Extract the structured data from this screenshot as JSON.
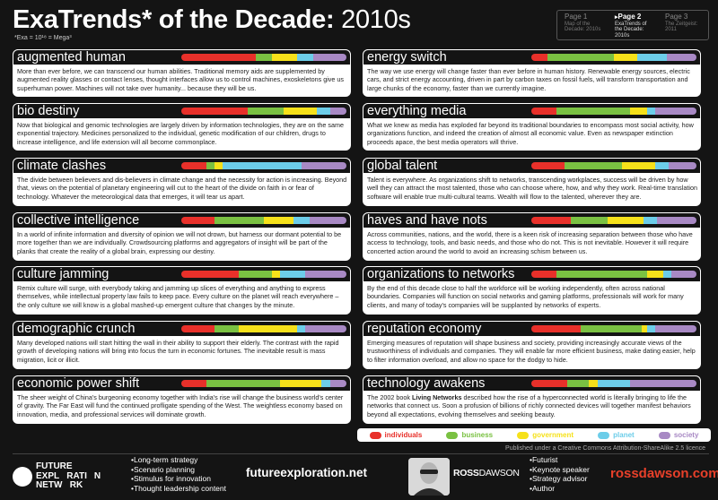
{
  "header": {
    "title_bold": "ExaTrends* of the Decade: ",
    "title_light": "2010s",
    "subtitle": "*Exa = 10¹⁸ = Mega³"
  },
  "pages": [
    {
      "name": "Page 1",
      "desc": "Map of the Decade: 2010s",
      "active": false
    },
    {
      "name": "Page 2",
      "desc": "ExaTrends of the Decade: 2010s",
      "active": true
    },
    {
      "name": "Page 3",
      "desc": "The Zeitgeist: 2011",
      "active": false
    }
  ],
  "colors": {
    "individuals": "#e8302a",
    "business": "#7ac142",
    "government": "#f6e11a",
    "planet": "#6ccde9",
    "society": "#a889c4"
  },
  "trends": [
    {
      "title": "augmented human",
      "body": "More than ever before, we can transcend our human abilities. Traditional memory aids are supplemented by augmented reality glasses or contact lenses, thought interfaces allow us to control machines, exoskeletons give us superhuman power. Machines will not take over humanity... because they will be us.",
      "mix": [
        45,
        10,
        15,
        10,
        20
      ]
    },
    {
      "title": "energy switch",
      "body": "The way we use energy will change faster than ever before in human history. Renewable energy sources, electric cars, and strict energy accounting, driven in part by carbon taxes on fossil fuels, will transform transportation and large chunks of the economy, faster than we currently imagine.",
      "mix": [
        10,
        40,
        14,
        18,
        18
      ]
    },
    {
      "title": "bio destiny",
      "body": "Now that biological and genomic technologies are largely driven by information technologies, they are on the same exponential trajectory. Medicines personalized to the individual, genetic modification of our children, drugs to increase intelligence, and life extension will all become commonplace.",
      "mix": [
        40,
        22,
        20,
        8,
        10
      ]
    },
    {
      "title": "everything media",
      "body": "What we knew as media has exploded far beyond its traditional boundaries to encompass most social activity, how organizations function, and indeed the creation of almost all economic value. Even as newspaper extinction proceeds apace, the best media operators will thrive.",
      "mix": [
        15,
        45,
        10,
        5,
        25
      ]
    },
    {
      "title": "climate clashes",
      "body": "The divide between believers and dis-believers in climate change and the necessity for action is increasing. Beyond that, views on the potential of planetary engineering will cut to the heart of the divide on faith in or fear of technology. Whatever the meteorological data that emerges, it will tear us apart.",
      "mix": [
        15,
        5,
        5,
        48,
        27
      ]
    },
    {
      "title": "global talent",
      "body": "Talent is everywhere. As organizations shift to networks, transcending workplaces, success will be driven by how well they can attract the most talented, those who can choose where, how, and why they work. Real-time translation software will enable true multi-cultural teams. Wealth will flow to the talented, wherever they are.",
      "mix": [
        20,
        35,
        20,
        8,
        17
      ]
    },
    {
      "title": "collective intelligence",
      "body": "In a world of infinite information and diversity of opinion we will not drown, but harness our dormant potential to be more together than we are individually. Crowdsourcing platforms and aggregators of insight will be part of the planks that create the reality of a global brain, expressing our destiny.",
      "mix": [
        20,
        30,
        18,
        10,
        22
      ]
    },
    {
      "title": "haves and have nots",
      "body": "Across communities, nations, and the world, there is a keen risk of increasing separation between those who have access to technology, tools, and basic needs, and those who do not. This is not inevitable. However it will require concerted action around the world to avoid an increasing schism between us.",
      "mix": [
        24,
        22,
        22,
        8,
        24
      ]
    },
    {
      "title": "culture jamming",
      "body": "Remix culture will surge, with everybody taking and jamming up slices of everything and anything to express themselves, while intellectual property law fails to keep pace. Every culture on the planet will reach everywhere – the only culture we will know is a global mashed-up emergent culture that changes by the minute.",
      "mix": [
        35,
        20,
        5,
        15,
        25
      ]
    },
    {
      "title": "organizations to networks",
      "body": "By the end of this decade close to half the workforce will be working independently, often across national boundaries. Companies will function on social networks and gaming platforms, professionals will work for many clients, and many of today's companies will be supplanted by networks of experts.",
      "mix": [
        15,
        55,
        10,
        5,
        15
      ]
    },
    {
      "title": "demographic crunch",
      "body": "Many developed nations will start hitting the wall in their ability to support their elderly. The contrast with the rapid growth of developing nations will bring into focus the turn in economic fortunes. The inevitable result is mass migration, licit or illicit.",
      "mix": [
        20,
        15,
        35,
        5,
        25
      ]
    },
    {
      "title": "reputation economy",
      "body": "Emerging measures of reputation will shape business and society, providing increasingly accurate views of the trustworthiness of individuals and companies. They will enable far more efficient business, make dating easier, help to filter information overload, and allow no space for the dodgy to hide.",
      "mix": [
        30,
        37,
        3,
        5,
        25
      ]
    },
    {
      "title": "economic power shift",
      "body": "The sheer weight of China's burgeoning economy together with India's rise will change the business world's center of gravity. The Far East will fund the continued profligate spending of the West. The weightless economy based on innovation, media, and professional services will dominate growth.",
      "mix": [
        15,
        45,
        25,
        5,
        10
      ]
    },
    {
      "title": "technology awakens",
      "body_prefix": "The 2002 book ",
      "body_bold": "Living Networks",
      "body": " described how the rise of a hyperconnected world is literally bringing to life the networks that connect us. Soon a profusion of billions of richly connected devices will together manifest behaviors beyond all expectations, evolving themselves and seeking beauty.",
      "mix": [
        22,
        13,
        5,
        20,
        40
      ]
    }
  ],
  "legend": [
    {
      "key": "individuals",
      "label": "individuals"
    },
    {
      "key": "business",
      "label": "business"
    },
    {
      "key": "government",
      "label": "government"
    },
    {
      "key": "planet",
      "label": "planet"
    },
    {
      "key": "society",
      "label": "society"
    }
  ],
  "license": "Published under a Creative Commons Attribution-ShareAlike 2.5 licence",
  "footer": {
    "fe_logo_lines": [
      "FUTURE",
      "EXPL   RATI",
      "NETW   RK"
    ],
    "fe_logo_n": "N",
    "fe_services": [
      "Long-term strategy",
      "Scenario planning",
      "Stimulus for innovation",
      "Thought leadership content"
    ],
    "fe_url": "futureexploration.net",
    "rd_logo_bold": "ROSS",
    "rd_logo_light": "DAWSON",
    "rd_services": [
      "Futurist",
      "Keynote speaker",
      "Strategy advisor",
      "Author"
    ],
    "rd_url": "rossdawson.com"
  }
}
